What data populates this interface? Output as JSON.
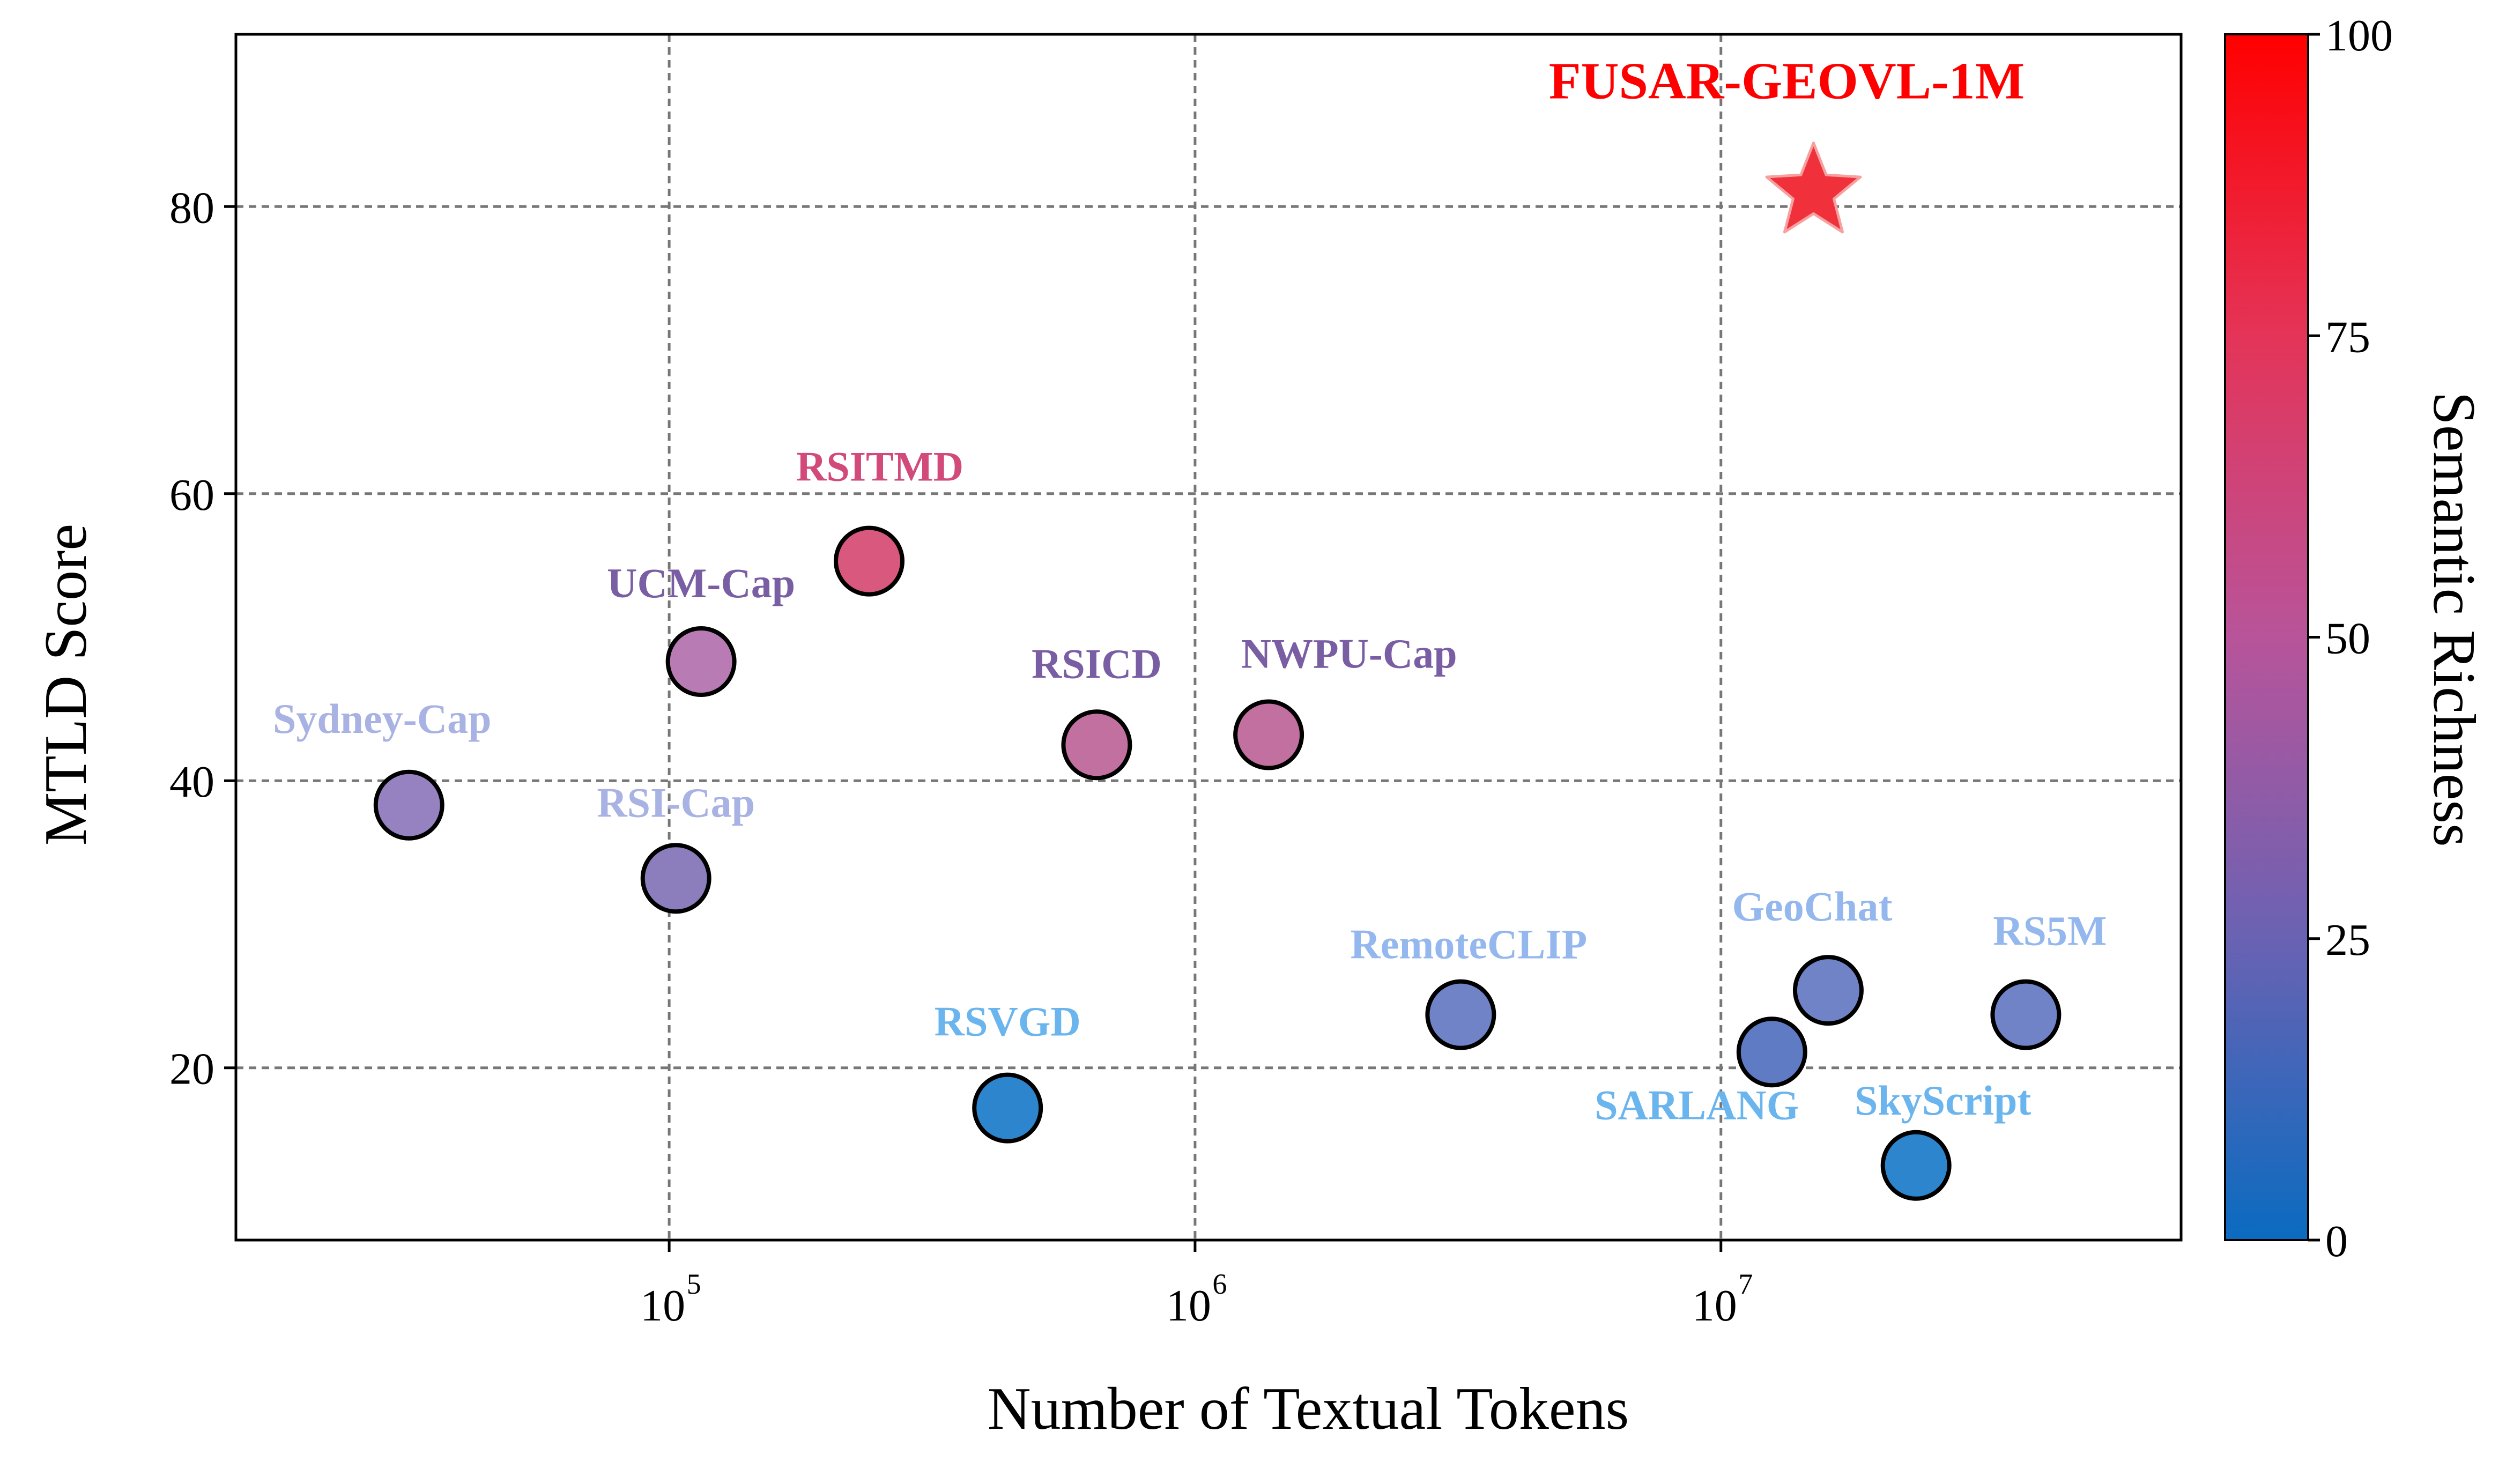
{
  "chart_data": {
    "type": "scatter",
    "xlabel": "Number of Textual Tokens",
    "ylabel": "MTLD Score",
    "x_scale": "log",
    "xlim": [
      15000,
      75000000
    ],
    "ylim": [
      8,
      92
    ],
    "x_ticks": [
      {
        "value": 100000,
        "base": "10",
        "exp": "5"
      },
      {
        "value": 1000000,
        "base": "10",
        "exp": "6"
      },
      {
        "value": 10000000,
        "base": "10",
        "exp": "7"
      }
    ],
    "y_ticks": [
      20,
      40,
      60,
      80
    ],
    "grid": true,
    "colorbar": {
      "label": "Semantic Richness",
      "range": [
        0,
        100
      ],
      "ticks": [
        "0",
        "25",
        "50",
        "75",
        "100"
      ],
      "colors": [
        "#0a6bc0",
        "#6a62b3",
        "#b8549a",
        "#e43458",
        "#ff0000"
      ]
    },
    "points": [
      {
        "name": "Sydney-Cap",
        "x": 32000,
        "y": 38.3,
        "richness": 38,
        "color": "#9682c0",
        "label_color": "#a8b2e3"
      },
      {
        "name": "UCM-Cap",
        "x": 115000,
        "y": 48.3,
        "richness": 48,
        "color": "#b87bb4",
        "label_color": "#7a5ea3"
      },
      {
        "name": "RSI-Cap",
        "x": 103000,
        "y": 33.2,
        "richness": 34,
        "color": "#8c7ebc",
        "label_color": "#a8b2e3"
      },
      {
        "name": "RSITMD",
        "x": 240000,
        "y": 55.3,
        "richness": 60,
        "color": "#d9587e",
        "label_color": "#d24a7a"
      },
      {
        "name": "RSICD",
        "x": 650000,
        "y": 42.5,
        "richness": 50,
        "color": "#c2709f",
        "label_color": "#7a5ea3"
      },
      {
        "name": "NWPU-Cap",
        "x": 1380000,
        "y": 43.2,
        "richness": 50,
        "color": "#c2709f",
        "label_color": "#7a5ea3"
      },
      {
        "name": "RSVGD",
        "x": 440000,
        "y": 17.2,
        "richness": 8,
        "color": "#2d86cd",
        "label_color": "#6ab5ee"
      },
      {
        "name": "RemoteCLIP",
        "x": 3200000,
        "y": 23.7,
        "richness": 24,
        "color": "#6f83c6",
        "label_color": "#94b8ee"
      },
      {
        "name": "GeoChat",
        "x": 16000000,
        "y": 25.4,
        "richness": 24,
        "color": "#6f83c6",
        "label_color": "#94b8ee"
      },
      {
        "name": "SARLANG",
        "x": 12500000,
        "y": 21.1,
        "richness": 20,
        "color": "#5f7bc3",
        "label_color": "#6ab5ee"
      },
      {
        "name": "RS5M",
        "x": 38000000,
        "y": 23.7,
        "richness": 24,
        "color": "#6f83c6",
        "label_color": "#94b8ee"
      },
      {
        "name": "SkyScript",
        "x": 23500000,
        "y": 13.2,
        "richness": 8,
        "color": "#2d86cd",
        "label_color": "#6ab5ee"
      }
    ],
    "highlight": {
      "name": "FUSAR-GEOVL-1M",
      "x": 15000000,
      "y": 81,
      "richness": 95,
      "color": "#f0303a",
      "label_color": "#ff0000"
    }
  }
}
